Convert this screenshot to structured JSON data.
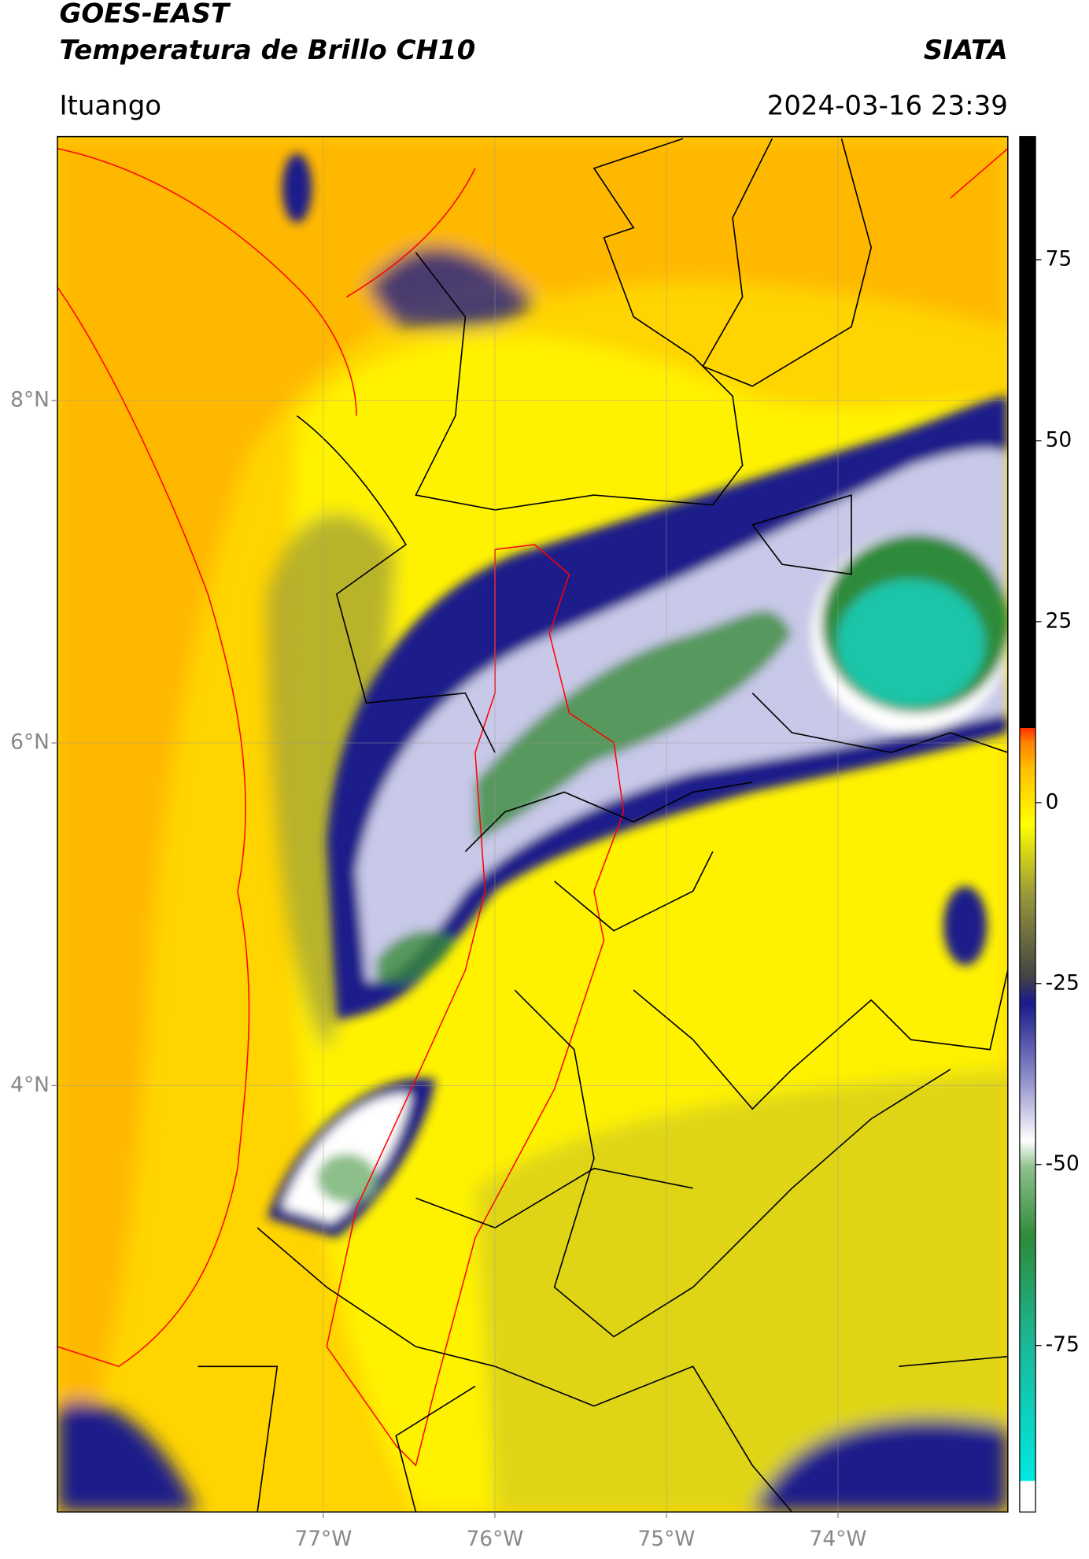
{
  "header": {
    "title": "GOES-EAST",
    "subtitle": "Temperatura de Brillo CH10",
    "brand": "SIATA",
    "location": "Ituango",
    "timestamp": "2024-03-16 23:39"
  },
  "map": {
    "xlim": [
      -78.55,
      -73.01
    ],
    "ylim": [
      1.51,
      9.54
    ],
    "xticks": [
      {
        "value": -77,
        "label": "77°W"
      },
      {
        "value": -76,
        "label": "76°W"
      },
      {
        "value": -75,
        "label": "75°W"
      },
      {
        "value": -74,
        "label": "74°W"
      }
    ],
    "yticks": [
      {
        "value": 8,
        "label": "8°N"
      },
      {
        "value": 6,
        "label": "6°N"
      },
      {
        "value": 4,
        "label": "4°N"
      }
    ],
    "grid": true
  },
  "colorbar": {
    "lim": [
      -98,
      92
    ],
    "ticks": [
      75,
      50,
      25,
      0,
      -25,
      -50,
      -75
    ]
  }
}
